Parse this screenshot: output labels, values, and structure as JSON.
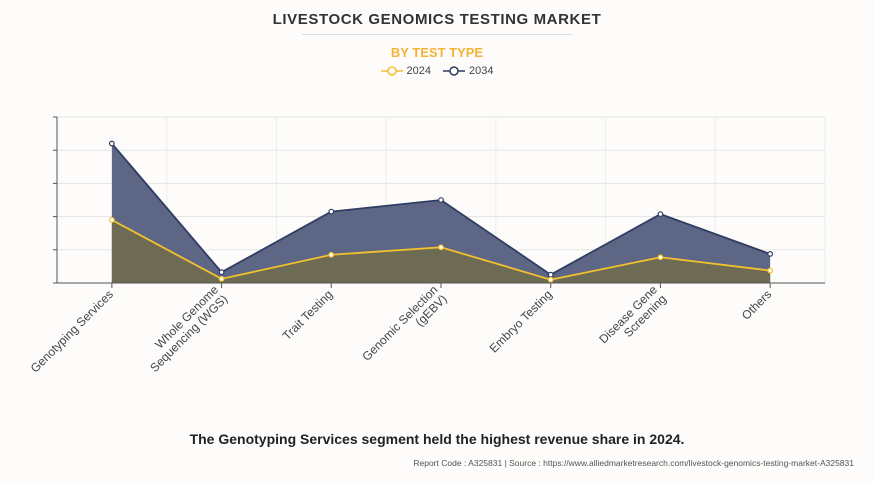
{
  "header": {
    "title": "LIVESTOCK GENOMICS TESTING MARKET",
    "subtitle": "BY TEST TYPE"
  },
  "chart_data": {
    "type": "area",
    "categories": [
      "Genotyping Services",
      "Whole Genome Sequencing (WGS)",
      "Trait Testing",
      "Genomic Selection (gEBV)",
      "Embryo Testing",
      "Disease Gene Screening",
      "Others"
    ],
    "category_lines": [
      [
        "Genotyping Services"
      ],
      [
        "Whole Genome",
        "Sequencing (WGS)"
      ],
      [
        "Trait Testing"
      ],
      [
        "Genomic Selection",
        "(gEBV)"
      ],
      [
        "Embryo Testing"
      ],
      [
        "Disease Gene",
        "Screening"
      ],
      [
        "Others"
      ]
    ],
    "series": [
      {
        "name": "2024",
        "values": [
          3.8,
          0.25,
          1.7,
          2.15,
          0.2,
          1.55,
          0.75
        ],
        "color": "#f2c12e",
        "fill": "#6e6b55"
      },
      {
        "name": "2034",
        "values": [
          8.4,
          0.65,
          4.3,
          5.0,
          0.5,
          4.15,
          1.75
        ],
        "color": "#2f3d63",
        "fill": "#5d6685"
      }
    ],
    "ylim": [
      0,
      10
    ],
    "y_ticks_shown": false,
    "grid": true,
    "legend_position": "top-center"
  },
  "footer": {
    "caption": "The Genotyping Services segment held the highest revenue share in 2024.",
    "source": "Report Code : A325831  |  Source : https://www.alliedmarketresearch.com/livestock-genomics-testing-market-A325831"
  }
}
